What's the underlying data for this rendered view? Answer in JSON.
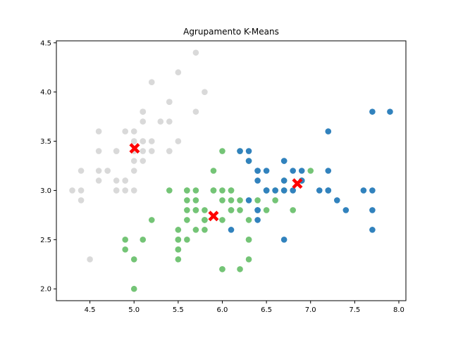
{
  "chart_data": {
    "type": "scatter",
    "title": "Agrupamento K-Means",
    "xlabel": "",
    "ylabel": "",
    "xlim": [
      4.12,
      8.08
    ],
    "ylim": [
      1.88,
      4.52
    ],
    "xticks": [
      "4.5",
      "5.0",
      "5.5",
      "6.0",
      "6.5",
      "7.0",
      "7.5",
      "8.0"
    ],
    "yticks": [
      "2.0",
      "2.5",
      "3.0",
      "3.5",
      "4.0",
      "4.5"
    ],
    "grid": false,
    "legend": "none",
    "series": [
      {
        "color": "#d9d9d9",
        "points": [
          [
            5.1,
            3.5
          ],
          [
            4.9,
            3.0
          ],
          [
            4.7,
            3.2
          ],
          [
            4.6,
            3.1
          ],
          [
            5.0,
            3.6
          ],
          [
            5.4,
            3.9
          ],
          [
            4.6,
            3.4
          ],
          [
            5.0,
            3.4
          ],
          [
            4.4,
            2.9
          ],
          [
            4.9,
            3.1
          ],
          [
            5.4,
            3.7
          ],
          [
            4.8,
            3.4
          ],
          [
            4.8,
            3.0
          ],
          [
            4.3,
            3.0
          ],
          [
            5.8,
            4.0
          ],
          [
            5.7,
            4.4
          ],
          [
            5.4,
            3.9
          ],
          [
            5.1,
            3.5
          ],
          [
            5.7,
            3.8
          ],
          [
            5.1,
            3.8
          ],
          [
            5.4,
            3.4
          ],
          [
            5.1,
            3.7
          ],
          [
            4.6,
            3.6
          ],
          [
            5.1,
            3.3
          ],
          [
            4.8,
            3.4
          ],
          [
            5.0,
            3.0
          ],
          [
            5.0,
            3.4
          ],
          [
            5.2,
            3.5
          ],
          [
            5.2,
            3.4
          ],
          [
            4.7,
            3.2
          ],
          [
            4.8,
            3.1
          ],
          [
            5.4,
            3.4
          ],
          [
            5.2,
            4.1
          ],
          [
            5.5,
            4.2
          ],
          [
            4.9,
            3.1
          ],
          [
            5.0,
            3.2
          ],
          [
            5.5,
            3.5
          ],
          [
            4.9,
            3.6
          ],
          [
            4.4,
            3.0
          ],
          [
            5.1,
            3.4
          ],
          [
            5.0,
            3.5
          ],
          [
            4.5,
            2.3
          ],
          [
            4.4,
            3.2
          ],
          [
            5.0,
            3.5
          ],
          [
            5.1,
            3.8
          ],
          [
            4.8,
            3.0
          ],
          [
            5.1,
            3.8
          ],
          [
            4.6,
            3.2
          ],
          [
            5.3,
            3.7
          ],
          [
            5.0,
            3.3
          ]
        ]
      },
      {
        "color": "#74c476",
        "points": [
          [
            5.5,
            2.3
          ],
          [
            6.5,
            2.8
          ],
          [
            5.7,
            2.8
          ],
          [
            6.3,
            3.3
          ],
          [
            4.9,
            2.4
          ],
          [
            6.6,
            2.9
          ],
          [
            5.2,
            2.7
          ],
          [
            5.0,
            2.0
          ],
          [
            5.9,
            3.0
          ],
          [
            6.0,
            2.2
          ],
          [
            6.1,
            2.9
          ],
          [
            5.6,
            2.9
          ],
          [
            6.7,
            3.1
          ],
          [
            5.6,
            3.0
          ],
          [
            5.8,
            2.7
          ],
          [
            6.2,
            2.2
          ],
          [
            5.6,
            2.5
          ],
          [
            5.9,
            3.2
          ],
          [
            6.1,
            2.8
          ],
          [
            6.3,
            2.5
          ],
          [
            6.1,
            2.8
          ],
          [
            6.4,
            2.9
          ],
          [
            6.6,
            3.0
          ],
          [
            6.8,
            2.8
          ],
          [
            6.0,
            2.9
          ],
          [
            5.7,
            2.6
          ],
          [
            5.5,
            2.4
          ],
          [
            5.5,
            2.4
          ],
          [
            5.8,
            2.7
          ],
          [
            6.0,
            2.7
          ],
          [
            5.4,
            3.0
          ],
          [
            6.0,
            3.4
          ],
          [
            6.3,
            2.3
          ],
          [
            5.6,
            3.0
          ],
          [
            5.5,
            2.5
          ],
          [
            5.5,
            2.6
          ],
          [
            6.1,
            3.0
          ],
          [
            5.8,
            2.6
          ],
          [
            5.0,
            2.3
          ],
          [
            5.6,
            2.7
          ],
          [
            5.7,
            3.0
          ],
          [
            5.7,
            2.9
          ],
          [
            6.2,
            2.9
          ],
          [
            5.1,
            2.5
          ],
          [
            5.7,
            2.8
          ],
          [
            5.8,
            2.7
          ],
          [
            4.9,
            2.5
          ],
          [
            6.0,
            2.2
          ],
          [
            5.6,
            2.8
          ],
          [
            6.3,
            2.7
          ],
          [
            6.2,
            2.8
          ],
          [
            6.1,
            3.0
          ],
          [
            6.3,
            2.5
          ],
          [
            6.5,
            3.0
          ],
          [
            5.9,
            3.0
          ],
          [
            7.0,
            3.2
          ],
          [
            6.9,
            3.1
          ],
          [
            5.5,
            2.5
          ],
          [
            6.0,
            3.0
          ],
          [
            5.8,
            2.8
          ],
          [
            6.7,
            3.0
          ],
          [
            6.2,
            3.4
          ]
        ]
      },
      {
        "color": "#3182bd",
        "points": [
          [
            6.3,
            3.3
          ],
          [
            7.1,
            3.0
          ],
          [
            6.3,
            2.9
          ],
          [
            6.5,
            3.0
          ],
          [
            7.6,
            3.0
          ],
          [
            7.3,
            2.9
          ],
          [
            6.7,
            2.5
          ],
          [
            7.2,
            3.6
          ],
          [
            6.5,
            3.2
          ],
          [
            6.4,
            2.7
          ],
          [
            6.8,
            3.0
          ],
          [
            6.4,
            3.2
          ],
          [
            7.7,
            3.8
          ],
          [
            7.7,
            2.6
          ],
          [
            6.9,
            3.2
          ],
          [
            7.7,
            2.8
          ],
          [
            6.7,
            3.3
          ],
          [
            7.2,
            3.2
          ],
          [
            7.2,
            3.0
          ],
          [
            7.4,
            2.8
          ],
          [
            7.9,
            3.8
          ],
          [
            6.4,
            2.8
          ],
          [
            6.1,
            2.6
          ],
          [
            7.7,
            3.0
          ],
          [
            6.3,
            3.4
          ],
          [
            6.4,
            3.1
          ],
          [
            6.9,
            3.1
          ],
          [
            6.7,
            3.1
          ],
          [
            6.8,
            3.2
          ],
          [
            6.7,
            3.3
          ],
          [
            6.7,
            3.0
          ],
          [
            6.5,
            3.0
          ],
          [
            6.2,
            3.4
          ],
          [
            6.9,
            3.1
          ],
          [
            6.4,
            3.2
          ],
          [
            6.4,
            2.8
          ],
          [
            6.6,
            3.0
          ],
          [
            7.2,
            3.0
          ]
        ]
      }
    ],
    "centroids": {
      "color": "#ff0000",
      "marker": "X",
      "points": [
        [
          5.006,
          3.428
        ],
        [
          5.9,
          2.74
        ],
        [
          6.85,
          3.07
        ]
      ]
    }
  }
}
